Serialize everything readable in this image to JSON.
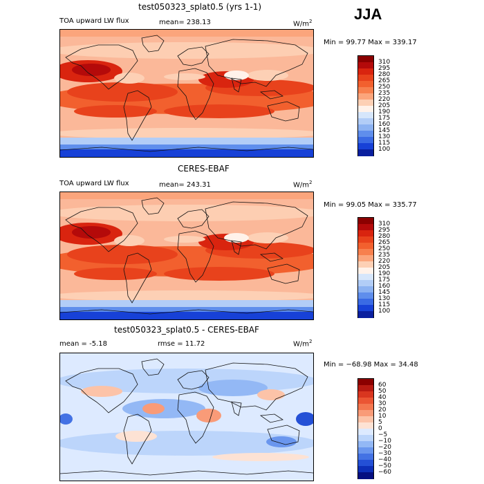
{
  "season": "JJA",
  "panels": [
    {
      "title": "test050323_splat0.5 (yrs 1-1)",
      "left_label": "TOA upward LW flux",
      "mean_label": "mean=  238.13",
      "units": "W/m",
      "units_sup": "2",
      "stats": "Min =   99.77 Max =  339.17",
      "palette": "flux"
    },
    {
      "title": "CERES-EBAF",
      "left_label": "TOA upward LW flux",
      "mean_label": "mean=  243.31",
      "units": "W/m",
      "units_sup": "2",
      "stats": "Min =   99.05 Max =  335.77",
      "palette": "flux"
    },
    {
      "title": "test050323_splat0.5 - CERES-EBAF",
      "left_label": "mean =   -5.18",
      "mean_label": "rmse =   11.72",
      "units": "W/m",
      "units_sup": "2",
      "stats": "Min = −68.98 Max =   34.48",
      "palette": "diff"
    }
  ],
  "chart_data": [
    {
      "type": "heatmap",
      "title": "test050323_splat0.5 (yrs 1-1)",
      "variable": "TOA upward LW flux",
      "units": "W/m2",
      "mean": 238.13,
      "min": 99.77,
      "max": 339.17,
      "colorbar_levels": [
        310,
        295,
        280,
        265,
        250,
        235,
        220,
        205,
        190,
        175,
        160,
        145,
        130,
        115,
        100
      ],
      "colors": [
        "#8b0000",
        "#b40a0a",
        "#d9240f",
        "#e8421c",
        "#f2602e",
        "#f7804e",
        "#fba57c",
        "#fdd0b5",
        "#fff2ea",
        "#d6e6fb",
        "#b2cdf7",
        "#8cb2f2",
        "#5f8eec",
        "#3a6ae4",
        "#1741d7",
        "#0a1f9e"
      ]
    },
    {
      "type": "heatmap",
      "title": "CERES-EBAF",
      "variable": "TOA upward LW flux",
      "units": "W/m2",
      "mean": 243.31,
      "min": 99.05,
      "max": 335.77,
      "colorbar_levels": [
        310,
        295,
        280,
        265,
        250,
        235,
        220,
        205,
        190,
        175,
        160,
        145,
        130,
        115,
        100
      ],
      "colors": [
        "#8b0000",
        "#b40a0a",
        "#d9240f",
        "#e8421c",
        "#f2602e",
        "#f7804e",
        "#fba57c",
        "#fdd0b5",
        "#fff2ea",
        "#d6e6fb",
        "#b2cdf7",
        "#8cb2f2",
        "#5f8eec",
        "#3a6ae4",
        "#1741d7",
        "#0a1f9e"
      ]
    },
    {
      "type": "heatmap",
      "title": "test050323_splat0.5 - CERES-EBAF",
      "units": "W/m2",
      "mean": -5.18,
      "rmse": 11.72,
      "min": -68.98,
      "max": 34.48,
      "colorbar_levels": [
        "60",
        "50",
        "40",
        "30",
        "20",
        "10",
        "5",
        "0",
        "−5",
        "−10",
        "−20",
        "−30",
        "−40",
        "−50",
        "−60"
      ],
      "colors": [
        "#8b0000",
        "#b81a12",
        "#d9361f",
        "#eb5533",
        "#f4774f",
        "#f99b78",
        "#fcc3a8",
        "#fde2d4",
        "#ddeaff",
        "#bcd5fb",
        "#93b8f5",
        "#6a96ee",
        "#4372e4",
        "#2450d6",
        "#0d2fb8",
        "#050f80"
      ]
    }
  ]
}
